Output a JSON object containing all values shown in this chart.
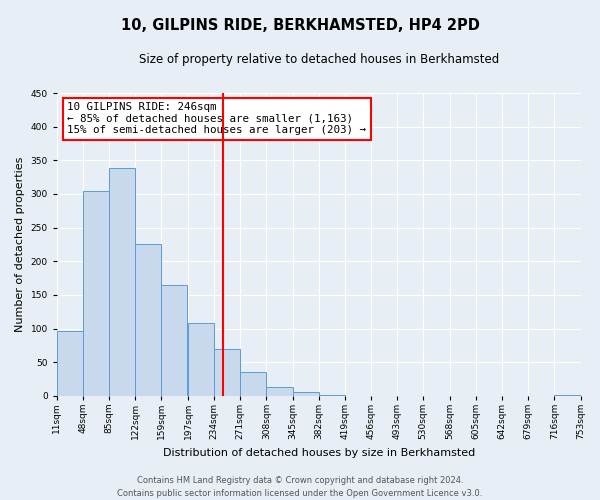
{
  "title": "10, GILPINS RIDE, BERKHAMSTED, HP4 2PD",
  "subtitle": "Size of property relative to detached houses in Berkhamsted",
  "xlabel": "Distribution of detached houses by size in Berkhamsted",
  "ylabel": "Number of detached properties",
  "bin_edges": [
    11,
    48,
    85,
    122,
    159,
    197,
    234,
    271,
    308,
    345,
    382,
    419,
    456,
    493,
    530,
    568,
    605,
    642,
    679,
    716,
    753
  ],
  "counts": [
    97,
    304,
    338,
    226,
    164,
    109,
    69,
    35,
    13,
    6,
    2,
    0,
    0,
    0,
    0,
    0,
    0,
    0,
    0,
    1
  ],
  "bar_color": "#c8d9ed",
  "bar_edge_color": "#5b9bd5",
  "vline_x": 246,
  "vline_color": "red",
  "annotation_box_color": "#ffffff",
  "annotation_border_color": "red",
  "annotation_line1": "10 GILPINS RIDE: 246sqm",
  "annotation_line2": "← 85% of detached houses are smaller (1,163)",
  "annotation_line3": "15% of semi-detached houses are larger (203) →",
  "ylim": [
    0,
    450
  ],
  "tick_labels": [
    "11sqm",
    "48sqm",
    "85sqm",
    "122sqm",
    "159sqm",
    "197sqm",
    "234sqm",
    "271sqm",
    "308sqm",
    "345sqm",
    "382sqm",
    "419sqm",
    "456sqm",
    "493sqm",
    "530sqm",
    "568sqm",
    "605sqm",
    "642sqm",
    "679sqm",
    "716sqm",
    "753sqm"
  ],
  "footer1": "Contains HM Land Registry data © Crown copyright and database right 2024.",
  "footer2": "Contains public sector information licensed under the Open Government Licence v3.0.",
  "background_color": "#e8eef5",
  "plot_bg_color": "#e8eef5",
  "grid_color": "#ffffff",
  "title_fontsize": 10.5,
  "subtitle_fontsize": 8.5,
  "axis_label_fontsize": 8,
  "tick_fontsize": 6.5,
  "footer_fontsize": 6,
  "annotation_fontsize": 7.8
}
